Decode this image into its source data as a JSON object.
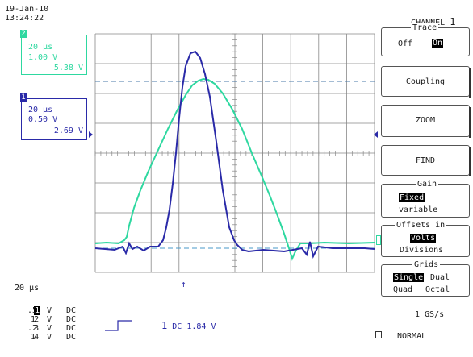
{
  "header": {
    "date": "19-Jan-10",
    "time": "13:24:22"
  },
  "trace2_box": {
    "number": "2",
    "timebase": "20 µs",
    "volts_div": "1.00 V",
    "offset": "5.38 V"
  },
  "trace1_box": {
    "number": "1",
    "timebase": "20 µs",
    "volts_div": "0.50 V",
    "offset": "2.69 V"
  },
  "menu": {
    "title_prefix": "CHANNEL",
    "title_num": "1",
    "trace": {
      "title": "Trace",
      "off": "Off",
      "on": "On"
    },
    "coupling": "Coupling",
    "zoom": "ZOOM",
    "find": "FIND",
    "gain": {
      "title": "Gain",
      "fixed": "Fixed",
      "variable": "variable"
    },
    "offsets": {
      "title": "Offsets in",
      "volts": "Volts",
      "divisions": "Divisions"
    },
    "grids": {
      "title": "Grids",
      "single": "Single",
      "dual": "Dual",
      "quad": "Quad",
      "octal": "Octal"
    }
  },
  "bottom": {
    "timebase": "20 µs",
    "channels": [
      {
        "num": "1",
        "value": ".5",
        "unit": "V",
        "coupling": "DC"
      },
      {
        "num": "2",
        "value": "1",
        "unit": "V",
        "coupling": "DC"
      },
      {
        "num": "3",
        "value": ".2",
        "unit": "V",
        "coupling": "DC"
      },
      {
        "num": "4",
        "value": "1",
        "unit": "V",
        "coupling": "DC"
      }
    ],
    "trigger": {
      "channel": "1",
      "coupling": "DC",
      "level": "1.84 V"
    },
    "sample_rate": "1 GS/s",
    "mode": "NORMAL"
  },
  "colors": {
    "ch1": "#2a2aa8",
    "ch2": "#2ed8a0",
    "grid": "#888888"
  }
}
